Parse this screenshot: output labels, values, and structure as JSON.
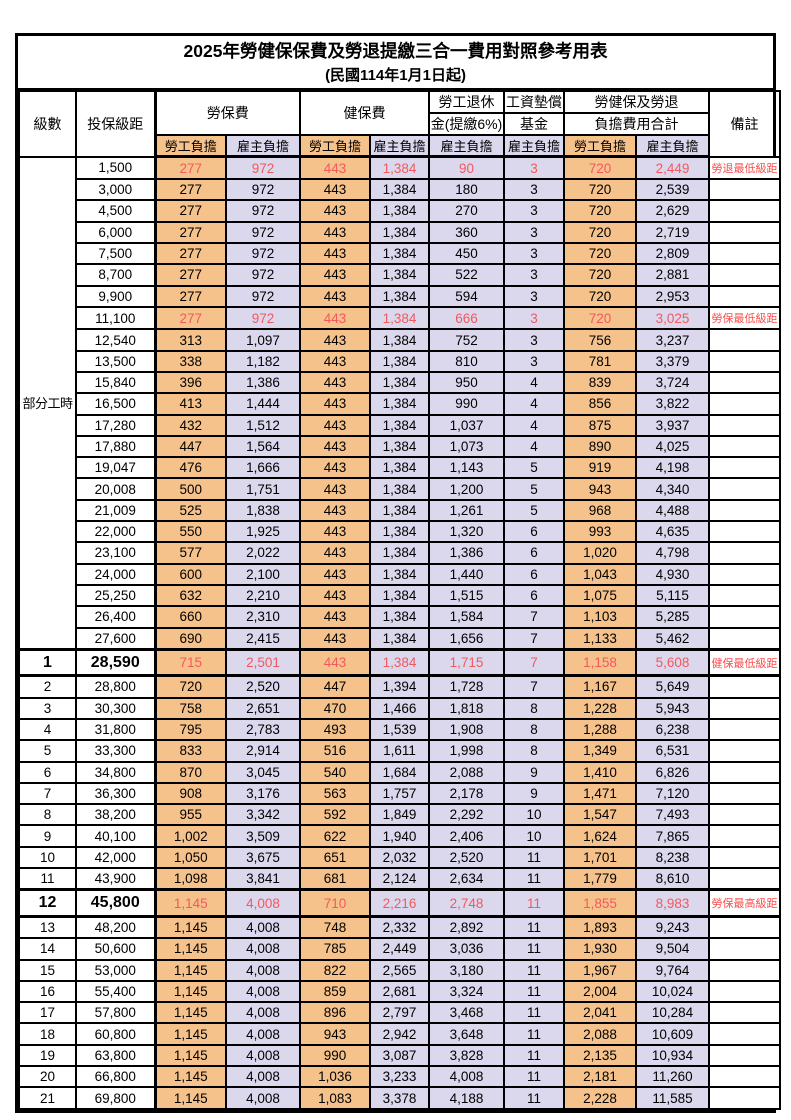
{
  "title": "2025年勞健保保費及勞退提繳三合一費用對照參考用表",
  "subtitle": "(民國114年1月1日起)",
  "colors": {
    "worker_bg": "#F6C28B",
    "employer_bg": "#DBD8EE",
    "highlight_red": "#F2595C",
    "note_red": "#FB4B4B",
    "border": "#000000"
  },
  "header": {
    "col_level": "級數",
    "col_bracket": "投保級距",
    "group_labor": "勞保費",
    "group_health": "健保費",
    "group_pension_line1": "勞工退休",
    "group_pension_line2": "金(提繳6%)",
    "group_wagefund_line1": "工資墊償",
    "group_wagefund_line2": "基金",
    "group_total_line1": "勞健保及勞退",
    "group_total_line2": "負擔費用合計",
    "col_note": "備註",
    "sub_worker": "勞工負擔",
    "sub_employer": "雇主負擔"
  },
  "part_time_label": "部分工時",
  "part_time_rowspan": 23,
  "rows": [
    {
      "lv": "",
      "br": "1,500",
      "v": [
        "277",
        "972",
        "443",
        "1,384",
        "90",
        "3",
        "720",
        "2,449"
      ],
      "nt": "勞退最低級距",
      "red": 1
    },
    {
      "lv": "",
      "br": "3,000",
      "v": [
        "277",
        "972",
        "443",
        "1,384",
        "180",
        "3",
        "720",
        "2,539"
      ],
      "nt": ""
    },
    {
      "lv": "",
      "br": "4,500",
      "v": [
        "277",
        "972",
        "443",
        "1,384",
        "270",
        "3",
        "720",
        "2,629"
      ],
      "nt": ""
    },
    {
      "lv": "",
      "br": "6,000",
      "v": [
        "277",
        "972",
        "443",
        "1,384",
        "360",
        "3",
        "720",
        "2,719"
      ],
      "nt": ""
    },
    {
      "lv": "",
      "br": "7,500",
      "v": [
        "277",
        "972",
        "443",
        "1,384",
        "450",
        "3",
        "720",
        "2,809"
      ],
      "nt": ""
    },
    {
      "lv": "",
      "br": "8,700",
      "v": [
        "277",
        "972",
        "443",
        "1,384",
        "522",
        "3",
        "720",
        "2,881"
      ],
      "nt": ""
    },
    {
      "lv": "",
      "br": "9,900",
      "v": [
        "277",
        "972",
        "443",
        "1,384",
        "594",
        "3",
        "720",
        "2,953"
      ],
      "nt": ""
    },
    {
      "lv": "",
      "br": "11,100",
      "v": [
        "277",
        "972",
        "443",
        "1,384",
        "666",
        "3",
        "720",
        "3,025"
      ],
      "nt": "勞保最低級距",
      "red": 1
    },
    {
      "lv": "",
      "br": "12,540",
      "v": [
        "313",
        "1,097",
        "443",
        "1,384",
        "752",
        "3",
        "756",
        "3,237"
      ],
      "nt": ""
    },
    {
      "lv": "",
      "br": "13,500",
      "v": [
        "338",
        "1,182",
        "443",
        "1,384",
        "810",
        "3",
        "781",
        "3,379"
      ],
      "nt": ""
    },
    {
      "lv": "",
      "br": "15,840",
      "v": [
        "396",
        "1,386",
        "443",
        "1,384",
        "950",
        "4",
        "839",
        "3,724"
      ],
      "nt": ""
    },
    {
      "lv": "",
      "br": "16,500",
      "v": [
        "413",
        "1,444",
        "443",
        "1,384",
        "990",
        "4",
        "856",
        "3,822"
      ],
      "nt": ""
    },
    {
      "lv": "",
      "br": "17,280",
      "v": [
        "432",
        "1,512",
        "443",
        "1,384",
        "1,037",
        "4",
        "875",
        "3,937"
      ],
      "nt": ""
    },
    {
      "lv": "",
      "br": "17,880",
      "v": [
        "447",
        "1,564",
        "443",
        "1,384",
        "1,073",
        "4",
        "890",
        "4,025"
      ],
      "nt": ""
    },
    {
      "lv": "",
      "br": "19,047",
      "v": [
        "476",
        "1,666",
        "443",
        "1,384",
        "1,143",
        "5",
        "919",
        "4,198"
      ],
      "nt": ""
    },
    {
      "lv": "",
      "br": "20,008",
      "v": [
        "500",
        "1,751",
        "443",
        "1,384",
        "1,200",
        "5",
        "943",
        "4,340"
      ],
      "nt": ""
    },
    {
      "lv": "",
      "br": "21,009",
      "v": [
        "525",
        "1,838",
        "443",
        "1,384",
        "1,261",
        "5",
        "968",
        "4,488"
      ],
      "nt": ""
    },
    {
      "lv": "",
      "br": "22,000",
      "v": [
        "550",
        "1,925",
        "443",
        "1,384",
        "1,320",
        "6",
        "993",
        "4,635"
      ],
      "nt": ""
    },
    {
      "lv": "",
      "br": "23,100",
      "v": [
        "577",
        "2,022",
        "443",
        "1,384",
        "1,386",
        "6",
        "1,020",
        "4,798"
      ],
      "nt": ""
    },
    {
      "lv": "",
      "br": "24,000",
      "v": [
        "600",
        "2,100",
        "443",
        "1,384",
        "1,440",
        "6",
        "1,043",
        "4,930"
      ],
      "nt": ""
    },
    {
      "lv": "",
      "br": "25,250",
      "v": [
        "632",
        "2,210",
        "443",
        "1,384",
        "1,515",
        "6",
        "1,075",
        "5,115"
      ],
      "nt": ""
    },
    {
      "lv": "",
      "br": "26,400",
      "v": [
        "660",
        "2,310",
        "443",
        "1,384",
        "1,584",
        "7",
        "1,103",
        "5,285"
      ],
      "nt": ""
    },
    {
      "lv": "",
      "br": "27,600",
      "v": [
        "690",
        "2,415",
        "443",
        "1,384",
        "1,656",
        "7",
        "1,133",
        "5,462"
      ],
      "nt": ""
    },
    {
      "lv": "1",
      "br": "28,590",
      "v": [
        "715",
        "2,501",
        "443",
        "1,384",
        "1,715",
        "7",
        "1,158",
        "5,608"
      ],
      "nt": "健保最低級距",
      "red": 1,
      "bold": 1,
      "tt": 1,
      "tb": 1
    },
    {
      "lv": "2",
      "br": "28,800",
      "v": [
        "720",
        "2,520",
        "447",
        "1,394",
        "1,728",
        "7",
        "1,167",
        "5,649"
      ],
      "nt": ""
    },
    {
      "lv": "3",
      "br": "30,300",
      "v": [
        "758",
        "2,651",
        "470",
        "1,466",
        "1,818",
        "8",
        "1,228",
        "5,943"
      ],
      "nt": ""
    },
    {
      "lv": "4",
      "br": "31,800",
      "v": [
        "795",
        "2,783",
        "493",
        "1,539",
        "1,908",
        "8",
        "1,288",
        "6,238"
      ],
      "nt": ""
    },
    {
      "lv": "5",
      "br": "33,300",
      "v": [
        "833",
        "2,914",
        "516",
        "1,611",
        "1,998",
        "8",
        "1,349",
        "6,531"
      ],
      "nt": ""
    },
    {
      "lv": "6",
      "br": "34,800",
      "v": [
        "870",
        "3,045",
        "540",
        "1,684",
        "2,088",
        "9",
        "1,410",
        "6,826"
      ],
      "nt": ""
    },
    {
      "lv": "7",
      "br": "36,300",
      "v": [
        "908",
        "3,176",
        "563",
        "1,757",
        "2,178",
        "9",
        "1,471",
        "7,120"
      ],
      "nt": ""
    },
    {
      "lv": "8",
      "br": "38,200",
      "v": [
        "955",
        "3,342",
        "592",
        "1,849",
        "2,292",
        "10",
        "1,547",
        "7,493"
      ],
      "nt": ""
    },
    {
      "lv": "9",
      "br": "40,100",
      "v": [
        "1,002",
        "3,509",
        "622",
        "1,940",
        "2,406",
        "10",
        "1,624",
        "7,865"
      ],
      "nt": ""
    },
    {
      "lv": "10",
      "br": "42,000",
      "v": [
        "1,050",
        "3,675",
        "651",
        "2,032",
        "2,520",
        "11",
        "1,701",
        "8,238"
      ],
      "nt": ""
    },
    {
      "lv": "11",
      "br": "43,900",
      "v": [
        "1,098",
        "3,841",
        "681",
        "2,124",
        "2,634",
        "11",
        "1,779",
        "8,610"
      ],
      "nt": ""
    },
    {
      "lv": "12",
      "br": "45,800",
      "v": [
        "1,145",
        "4,008",
        "710",
        "2,216",
        "2,748",
        "11",
        "1,855",
        "8,983"
      ],
      "nt": "勞保最高級距",
      "red": 1,
      "bold": 1,
      "tt": 1,
      "tb": 1
    },
    {
      "lv": "13",
      "br": "48,200",
      "v": [
        "1,145",
        "4,008",
        "748",
        "2,332",
        "2,892",
        "11",
        "1,893",
        "9,243"
      ],
      "nt": ""
    },
    {
      "lv": "14",
      "br": "50,600",
      "v": [
        "1,145",
        "4,008",
        "785",
        "2,449",
        "3,036",
        "11",
        "1,930",
        "9,504"
      ],
      "nt": ""
    },
    {
      "lv": "15",
      "br": "53,000",
      "v": [
        "1,145",
        "4,008",
        "822",
        "2,565",
        "3,180",
        "11",
        "1,967",
        "9,764"
      ],
      "nt": ""
    },
    {
      "lv": "16",
      "br": "55,400",
      "v": [
        "1,145",
        "4,008",
        "859",
        "2,681",
        "3,324",
        "11",
        "2,004",
        "10,024"
      ],
      "nt": ""
    },
    {
      "lv": "17",
      "br": "57,800",
      "v": [
        "1,145",
        "4,008",
        "896",
        "2,797",
        "3,468",
        "11",
        "2,041",
        "10,284"
      ],
      "nt": ""
    },
    {
      "lv": "18",
      "br": "60,800",
      "v": [
        "1,145",
        "4,008",
        "943",
        "2,942",
        "3,648",
        "11",
        "2,088",
        "10,609"
      ],
      "nt": ""
    },
    {
      "lv": "19",
      "br": "63,800",
      "v": [
        "1,145",
        "4,008",
        "990",
        "3,087",
        "3,828",
        "11",
        "2,135",
        "10,934"
      ],
      "nt": ""
    },
    {
      "lv": "20",
      "br": "66,800",
      "v": [
        "1,145",
        "4,008",
        "1,036",
        "3,233",
        "4,008",
        "11",
        "2,181",
        "11,260"
      ],
      "nt": ""
    },
    {
      "lv": "21",
      "br": "69,800",
      "v": [
        "1,145",
        "4,008",
        "1,083",
        "3,378",
        "4,188",
        "11",
        "2,228",
        "11,585"
      ],
      "nt": ""
    }
  ]
}
